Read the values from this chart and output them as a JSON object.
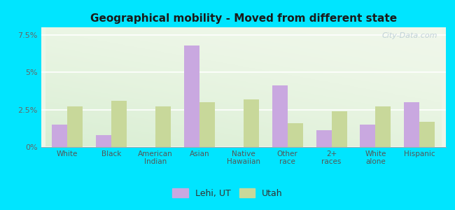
{
  "title": "Geographical mobility - Moved from different state",
  "categories": [
    "White",
    "Black",
    "American\nIndian",
    "Asian",
    "Native\nHawaiian",
    "Other\nrace",
    "2+\nraces",
    "White\nalone",
    "Hispanic"
  ],
  "lehi_values": [
    1.5,
    0.8,
    0.0,
    6.8,
    0.0,
    4.1,
    1.1,
    1.5,
    3.0
  ],
  "utah_values": [
    2.7,
    3.1,
    2.7,
    3.0,
    3.2,
    1.6,
    2.4,
    2.7,
    1.7
  ],
  "lehi_color": "#c9a8e0",
  "utah_color": "#c8d89a",
  "background_outer": "#00e5ff",
  "ylim": [
    0,
    8.0
  ],
  "yticks": [
    0,
    2.5,
    5.0,
    7.5
  ],
  "ytick_labels": [
    "0%",
    "2.5%",
    "5%",
    "7.5%"
  ],
  "legend_lehi": "Lehi, UT",
  "legend_utah": "Utah",
  "bar_width": 0.35,
  "watermark": "City-Data.com"
}
